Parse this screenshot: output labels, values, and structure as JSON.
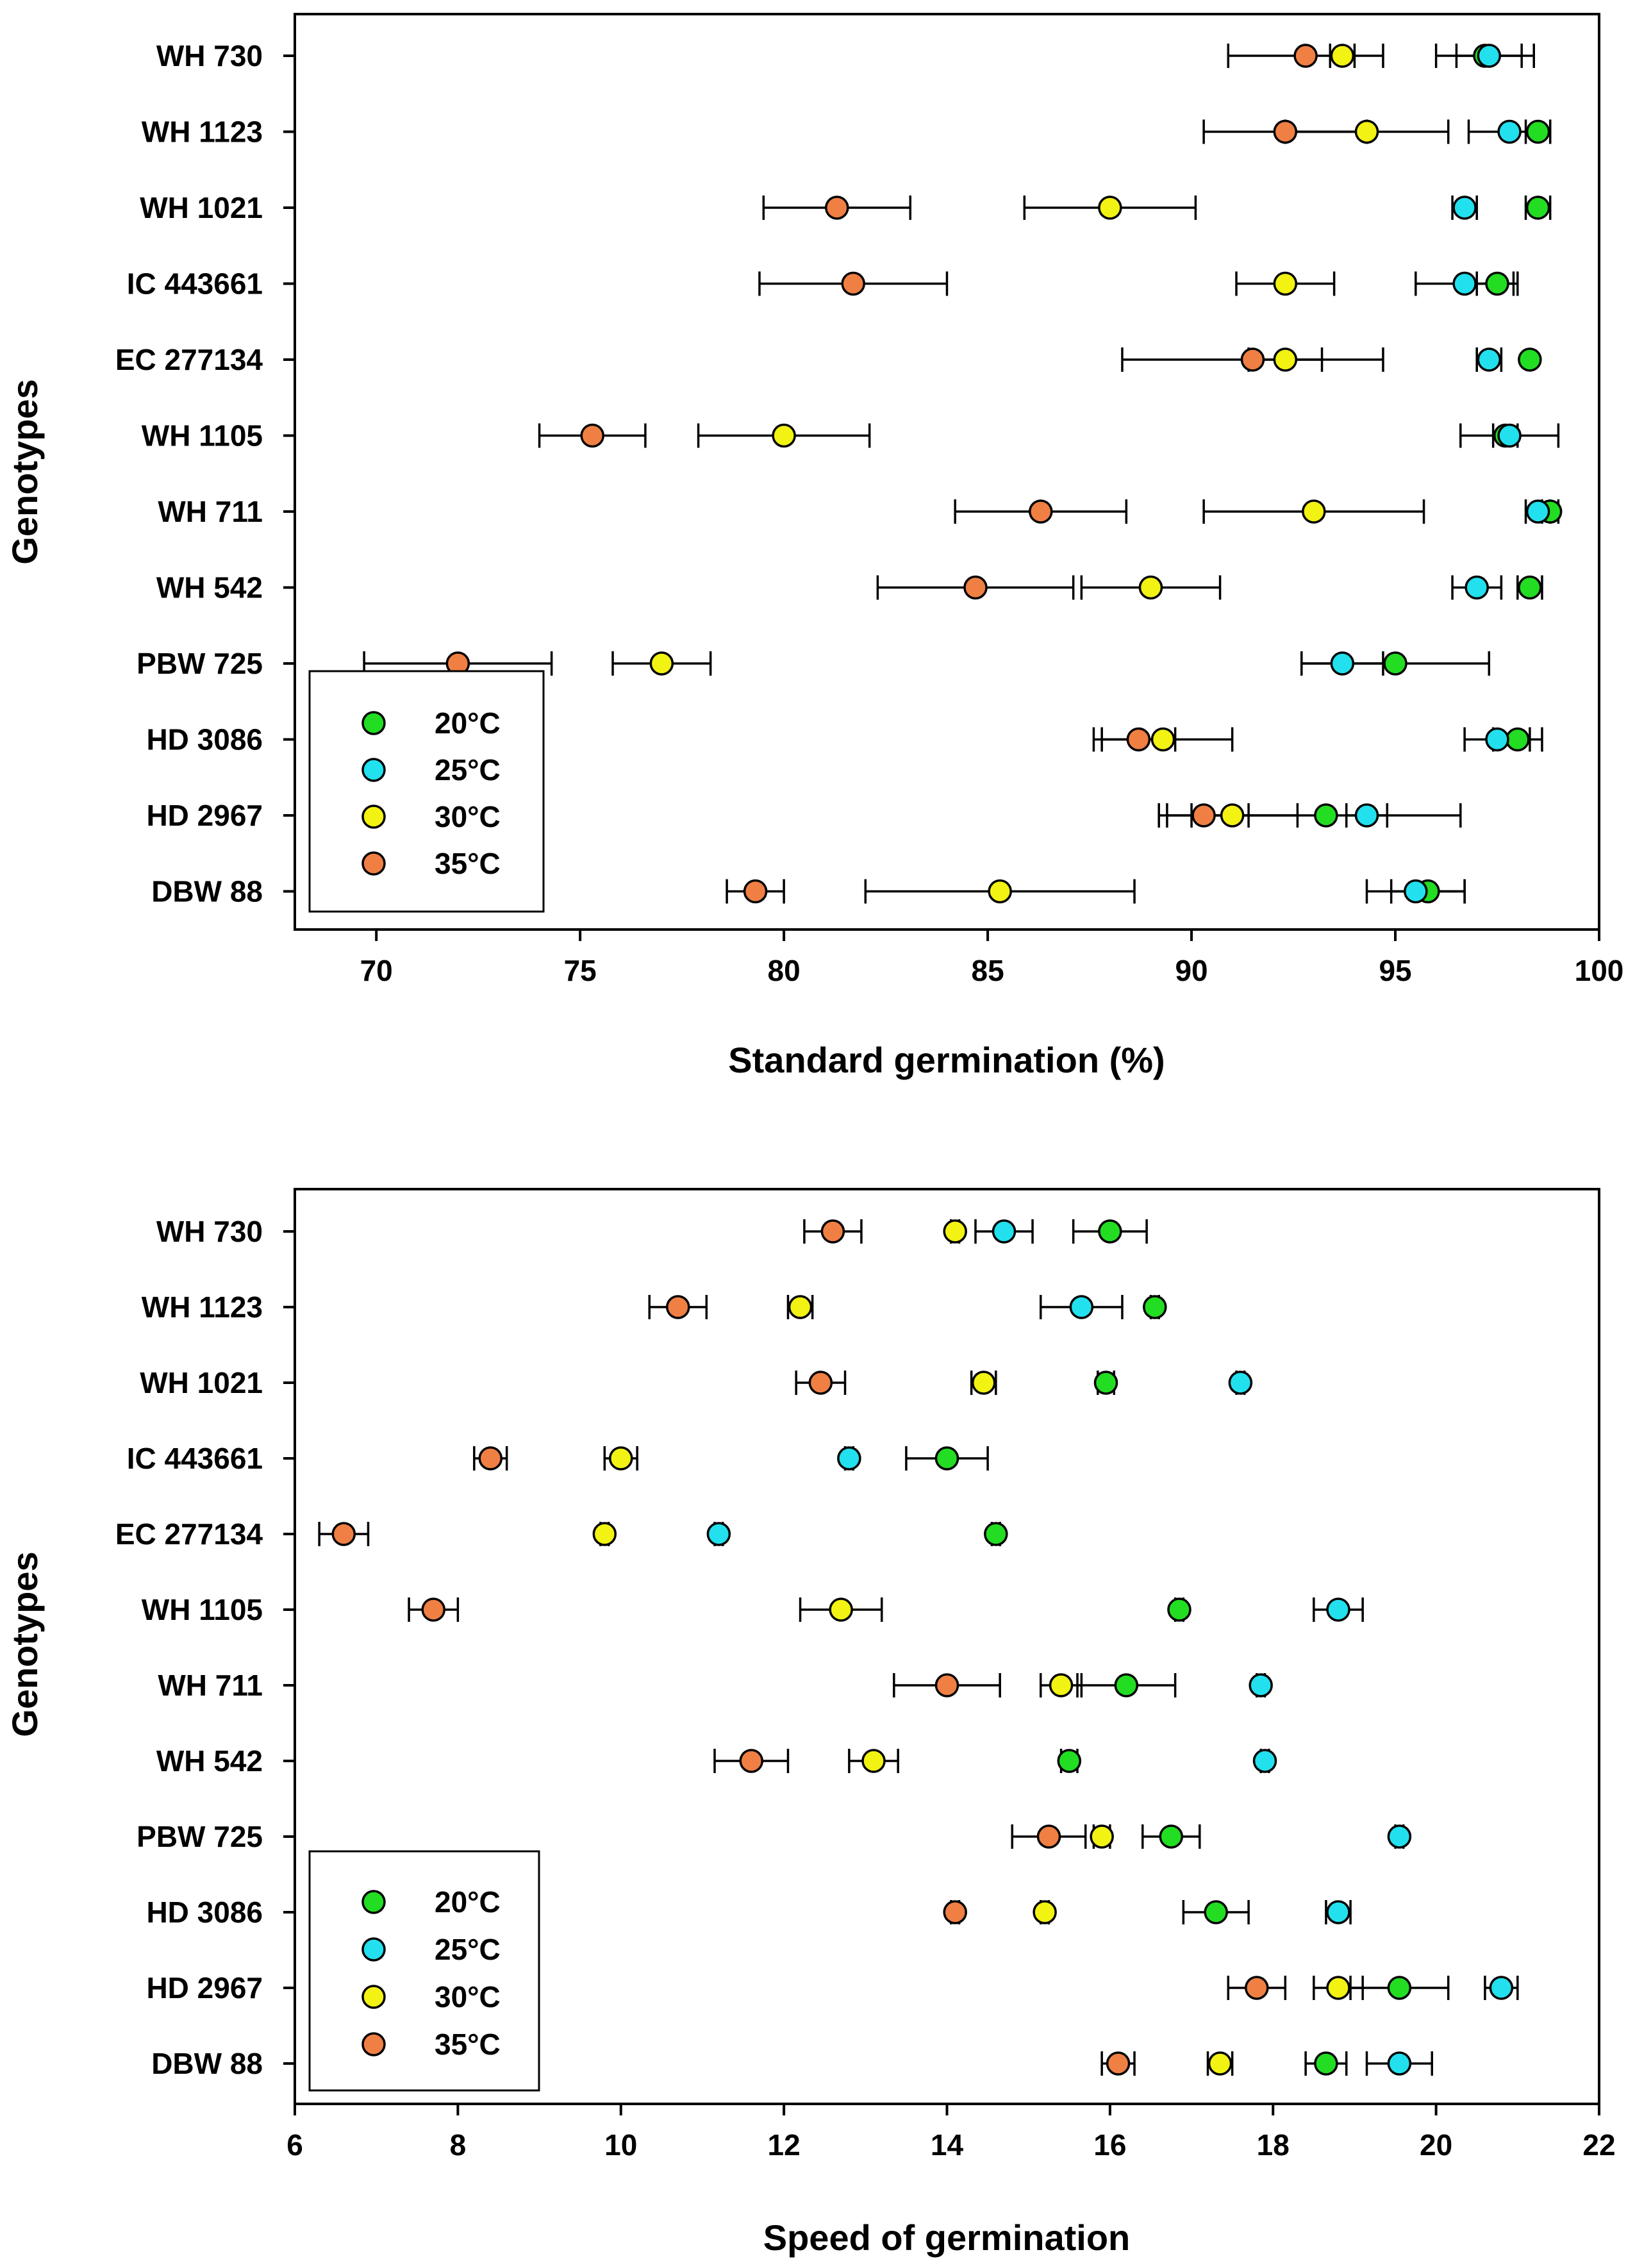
{
  "colors": {
    "20°C": "#22dd22",
    "25°C": "#22e0ee",
    "30°C": "#f2f213",
    "35°C": "#f07f44"
  },
  "chart_data": [
    {
      "type": "scatter",
      "xlabel": "Standard germination (%)",
      "ylabel": "Genotypes",
      "xlim": [
        68,
        100
      ],
      "xticks": [
        70,
        75,
        80,
        85,
        90,
        95,
        100
      ],
      "legend": {
        "position": "bottom-left",
        "entries": [
          "20°C",
          "25°C",
          "30°C",
          "35°C"
        ]
      },
      "categories": [
        "WH 730",
        "WH 1123",
        "WH 1021",
        "IC 443661",
        "EC 277134",
        "WH 1105",
        "WH 711",
        "WH 542",
        "PBW 725",
        "HD 3086",
        "HD 2967",
        "DBW 88"
      ],
      "series": [
        {
          "name": "20°C",
          "values": [
            97.2,
            98.5,
            98.5,
            97.5,
            98.3,
            97.7,
            98.8,
            98.3,
            95.0,
            98.0,
            93.3,
            95.8
          ],
          "errors": [
            1.2,
            0.3,
            0.3,
            0.5,
            0.0,
            0.3,
            0.2,
            0.3,
            2.3,
            0.6,
            3.3,
            0.9
          ]
        },
        {
          "name": "25°C",
          "values": [
            97.3,
            97.8,
            96.7,
            96.7,
            97.3,
            97.8,
            98.5,
            97.0,
            93.7,
            97.5,
            94.3,
            95.5
          ],
          "errors": [
            0.8,
            1.0,
            0.3,
            1.2,
            0.3,
            1.2,
            0.3,
            0.6,
            1.0,
            0.8,
            0.5,
            1.2
          ]
        },
        {
          "name": "30°C",
          "values": [
            93.7,
            94.3,
            88.0,
            92.3,
            92.3,
            80.0,
            93.0,
            89.0,
            77.0,
            89.3,
            91.0,
            85.3
          ],
          "errors": [
            0.3,
            2.0,
            2.1,
            1.2,
            0.9,
            2.1,
            2.7,
            1.7,
            1.2,
            1.7,
            1.6,
            3.3
          ]
        },
        {
          "name": "35°C",
          "values": [
            92.8,
            92.3,
            81.3,
            81.7,
            91.5,
            75.3,
            86.3,
            84.7,
            72.0,
            88.7,
            90.3,
            79.3
          ],
          "errors": [
            1.9,
            2.0,
            1.8,
            2.3,
            3.2,
            1.3,
            2.1,
            2.4,
            2.3,
            0.9,
            1.1,
            0.7
          ]
        }
      ]
    },
    {
      "type": "scatter",
      "xlabel": "Speed of germination",
      "ylabel": "Genotypes",
      "xlim": [
        6,
        22
      ],
      "xticks": [
        6,
        8,
        10,
        12,
        14,
        16,
        18,
        20,
        22
      ],
      "legend": {
        "position": "bottom-left",
        "entries": [
          "20°C",
          "25°C",
          "30°C",
          "35°C"
        ]
      },
      "categories": [
        "WH 730",
        "WH 1123",
        "WH 1021",
        "IC 443661",
        "EC 277134",
        "WH 1105",
        "WH 711",
        "WH 542",
        "PBW 725",
        "HD 3086",
        "HD 2967",
        "DBW 88"
      ],
      "series": [
        {
          "name": "20°C",
          "values": [
            16.0,
            16.55,
            15.95,
            14.0,
            14.6,
            16.85,
            16.2,
            15.5,
            16.75,
            17.3,
            19.55,
            18.65
          ],
          "errors": [
            0.45,
            0.05,
            0.1,
            0.5,
            0.05,
            0.05,
            0.6,
            0.1,
            0.35,
            0.4,
            0.6,
            0.25
          ]
        },
        {
          "name": "25°C",
          "values": [
            14.7,
            15.65,
            17.6,
            12.8,
            11.2,
            18.8,
            17.85,
            17.9,
            19.55,
            18.8,
            20.8,
            19.55
          ],
          "errors": [
            0.35,
            0.5,
            0.05,
            0.05,
            0.05,
            0.3,
            0.05,
            0.05,
            0.05,
            0.15,
            0.2,
            0.4
          ]
        },
        {
          "name": "30°C",
          "values": [
            14.1,
            12.2,
            14.45,
            10.0,
            9.8,
            12.7,
            15.4,
            13.1,
            15.9,
            15.2,
            18.8,
            17.35
          ],
          "errors": [
            0.05,
            0.15,
            0.15,
            0.2,
            0.05,
            0.5,
            0.25,
            0.3,
            0.1,
            0.05,
            0.3,
            0.15
          ]
        },
        {
          "name": "35°C",
          "values": [
            12.6,
            10.7,
            12.45,
            8.4,
            6.6,
            7.7,
            14.0,
            11.6,
            15.25,
            14.1,
            17.8,
            16.1
          ],
          "errors": [
            0.35,
            0.35,
            0.3,
            0.2,
            0.3,
            0.3,
            0.65,
            0.45,
            0.45,
            0.05,
            0.35,
            0.2
          ]
        }
      ]
    }
  ]
}
